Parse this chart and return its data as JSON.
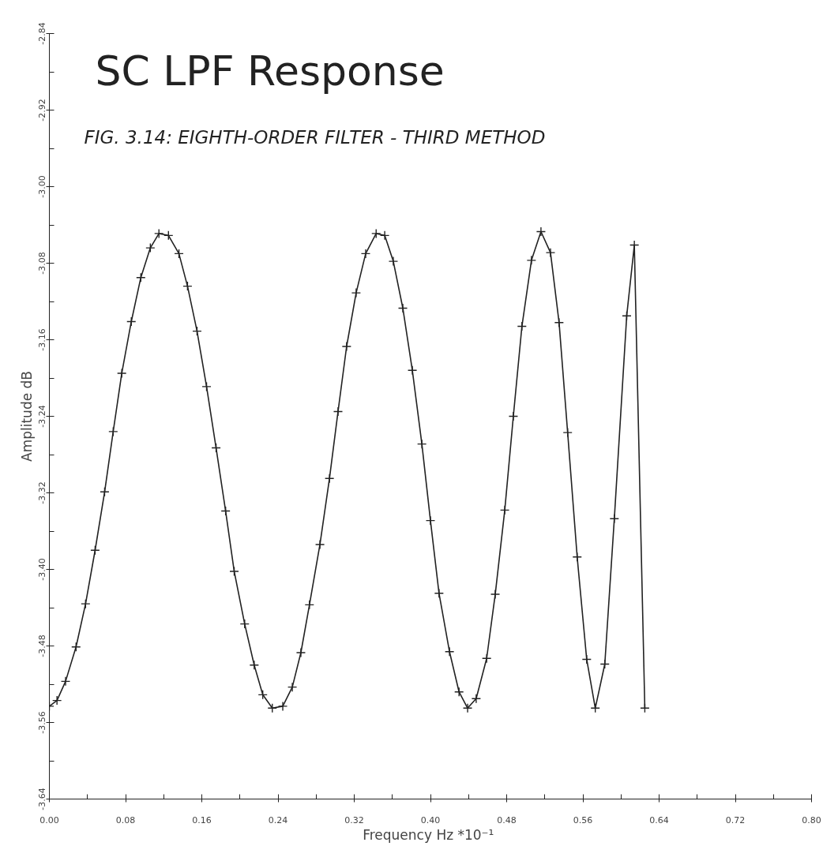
{
  "chart_data": {
    "type": "line",
    "title": "SC LPF Response",
    "subtitle": "FIG. 3.14: EIGHTH-ORDER FILTER - THIRD METHOD",
    "xlabel": "Frequency Hz  *10⁻¹",
    "ylabel": "Amplitude dB",
    "x": [
      0.0,
      0.008,
      0.017,
      0.028,
      0.038,
      0.048,
      0.058,
      0.067,
      0.076,
      0.086,
      0.096,
      0.106,
      0.115,
      0.125,
      0.136,
      0.145,
      0.155,
      0.165,
      0.175,
      0.185,
      0.194,
      0.205,
      0.215,
      0.224,
      0.234,
      0.245,
      0.255,
      0.264,
      0.273,
      0.284,
      0.294,
      0.303,
      0.312,
      0.322,
      0.332,
      0.343,
      0.352,
      0.361,
      0.371,
      0.381,
      0.391,
      0.4,
      0.409,
      0.42,
      0.43,
      0.439,
      0.448,
      0.459,
      0.468,
      0.478,
      0.487,
      0.496,
      0.506,
      0.516,
      0.526,
      0.535,
      0.544,
      0.554,
      0.564,
      0.573,
      0.583,
      0.593,
      0.606,
      0.614,
      0.625
    ],
    "series": [
      {
        "color": "#222222",
        "values": [
          -3.543,
          -3.537,
          -3.517,
          -3.481,
          -3.436,
          -3.38,
          -3.319,
          -3.256,
          -3.195,
          -3.141,
          -3.095,
          -3.064,
          -3.049,
          -3.051,
          -3.07,
          -3.104,
          -3.151,
          -3.209,
          -3.273,
          -3.339,
          -3.402,
          -3.457,
          -3.5,
          -3.531,
          -3.545,
          -3.543,
          -3.523,
          -3.487,
          -3.437,
          -3.374,
          -3.305,
          -3.235,
          -3.167,
          -3.111,
          -3.07,
          -3.049,
          -3.051,
          -3.078,
          -3.127,
          -3.192,
          -3.269,
          -3.349,
          -3.425,
          -3.486,
          -3.528,
          -3.545,
          -3.535,
          -3.493,
          -3.426,
          -3.338,
          -3.24,
          -3.146,
          -3.077,
          -3.047,
          -3.069,
          -3.142,
          -3.257,
          -3.387,
          -3.494,
          -3.545,
          -3.499,
          -3.347,
          -3.135,
          -3.061,
          -3.545
        ]
      }
    ],
    "xlim": [
      0,
      0.8
    ],
    "ylim": [
      -3.64,
      -2.84
    ],
    "xticks": [
      {
        "value": 0,
        "label": "0.00"
      },
      {
        "value": 0.08,
        "label": "0.08"
      },
      {
        "value": 0.16,
        "label": "0.16"
      },
      {
        "value": 0.24,
        "label": "0.24"
      },
      {
        "value": 0.32,
        "label": "0.32"
      },
      {
        "value": 0.4,
        "label": "0.40"
      },
      {
        "value": 0.48,
        "label": "0.48"
      },
      {
        "value": 0.56,
        "label": "0.56"
      },
      {
        "value": 0.64,
        "label": "0.64"
      },
      {
        "value": 0.72,
        "label": "0.72"
      },
      {
        "value": 0.8,
        "label": "0.80"
      }
    ],
    "yticks": [
      {
        "value": -3.64,
        "label": "-3.64"
      },
      {
        "value": -3.56,
        "label": "-3.56"
      },
      {
        "value": -3.48,
        "label": "-3.48"
      },
      {
        "value": -3.4,
        "label": "-3.40"
      },
      {
        "value": -3.32,
        "label": "-3.32"
      },
      {
        "value": -3.24,
        "label": "-3.24"
      },
      {
        "value": -3.16,
        "label": "-3.16"
      },
      {
        "value": -3.08,
        "label": "-3.08"
      },
      {
        "value": -3.0,
        "label": "-3.00"
      },
      {
        "value": -2.92,
        "label": "-2.92"
      },
      {
        "value": -2.84,
        "label": "-2.84"
      }
    ],
    "grid": false,
    "marker": "cross",
    "line_style": "solid"
  }
}
